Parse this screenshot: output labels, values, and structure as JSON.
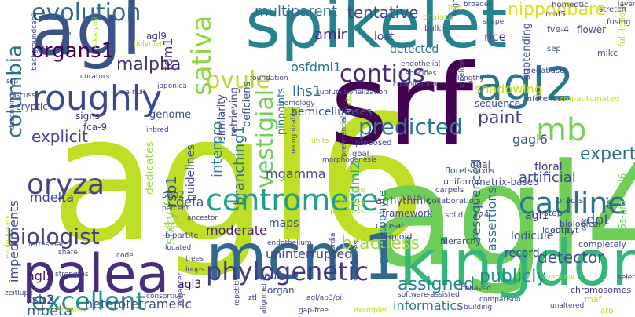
{
  "words": [
    {
      "text": "agl6",
      "color": "#bddf26"
    },
    {
      "text": "agl4",
      "color": "#6ece58"
    },
    {
      "text": "srf",
      "color": "#440154"
    },
    {
      "text": "spikelet",
      "color": "#26828e"
    },
    {
      "text": "agl",
      "color": "#3b528b"
    },
    {
      "text": "kingdoms",
      "color": "#35b779"
    },
    {
      "text": "mcm1",
      "color": "#31688e"
    },
    {
      "text": "palea",
      "color": "#472d7b"
    },
    {
      "text": "agl2",
      "color": "#2a788e"
    },
    {
      "text": "roughly",
      "color": "#3e4989"
    },
    {
      "text": "mb",
      "color": "#7ad151"
    },
    {
      "text": "cauline",
      "color": "#2c728e"
    },
    {
      "text": "centromere",
      "color": "#1f9e89"
    },
    {
      "text": "oryza",
      "color": "#414487"
    },
    {
      "text": "phylogenetic",
      "color": "#443983"
    },
    {
      "text": "excellent",
      "color": "#21918c"
    },
    {
      "text": "evolution",
      "color": "#31688e"
    },
    {
      "text": "ovule",
      "color": "#b5de2b"
    },
    {
      "text": "sativa",
      "color": "#90d743"
    },
    {
      "text": "contigs",
      "color": "#482878"
    },
    {
      "text": "predicted",
      "color": "#2a788e"
    },
    {
      "text": "vestigial",
      "color": "#6ece58"
    },
    {
      "text": "biologist",
      "color": "#433e85"
    },
    {
      "text": "columbia",
      "color": "#2e6e8e"
    },
    {
      "text": "organs1",
      "color": "#440154"
    },
    {
      "text": "malpha",
      "color": "#46327e"
    },
    {
      "text": "paint",
      "color": "#433e85"
    },
    {
      "text": "expert",
      "color": "#2c728e"
    },
    {
      "text": "bractless",
      "color": "#a0da39"
    },
    {
      "text": "tentative",
      "color": "#3f4788"
    },
    {
      "text": "nipponbare",
      "color": "#dde318"
    },
    {
      "text": "multiparent",
      "color": "#2d708e"
    },
    {
      "text": "amir",
      "color": "#482475"
    },
    {
      "text": "assigned",
      "color": "#26828e"
    },
    {
      "text": "publicly",
      "color": "#21918c"
    },
    {
      "text": "detector",
      "color": "#3b528b"
    },
    {
      "text": "uninterrupted",
      "color": "#414487"
    },
    {
      "text": "moderate",
      "color": "#481f70"
    },
    {
      "text": "artificial",
      "color": "#3e4a89"
    },
    {
      "text": "explicit",
      "color": "#3e4989"
    },
    {
      "text": "impediments",
      "color": "#3f4889"
    },
    {
      "text": "mbeta",
      "color": "#38588c"
    },
    {
      "text": "heterotetrameric",
      "color": "#3e4c8a"
    },
    {
      "text": "informatics",
      "color": "#2a768e"
    },
    {
      "text": "interpro",
      "color": "#24878e"
    },
    {
      "text": "branching1",
      "color": "#2e6f8e"
    },
    {
      "text": "sixty-four",
      "color": "#7fd34e"
    },
    {
      "text": "agl5",
      "color": "#48186a"
    },
    {
      "text": "rsb2",
      "color": "#453882"
    },
    {
      "text": "rsb1",
      "color": "#404688"
    },
    {
      "text": "mgamma",
      "color": "#3e4a89"
    },
    {
      "text": "osfdml2",
      "color": "#28ae80"
    },
    {
      "text": "gametophyte",
      "color": "#2d708e"
    },
    {
      "text": "resequenced",
      "color": "#355e8d"
    },
    {
      "text": "assertions",
      "color": "#2e6e8e"
    },
    {
      "text": "lodicule",
      "color": "#3a538b"
    },
    {
      "text": "record",
      "color": "#404588"
    },
    {
      "text": "dot",
      "color": "#3a538b"
    },
    {
      "text": "defa",
      "color": "#3b528b"
    },
    {
      "text": "mdelta",
      "color": "#3e4989"
    },
    {
      "text": "lhs1",
      "color": "#2f6c8e"
    },
    {
      "text": "osfdml1",
      "color": "#2c718e"
    },
    {
      "text": "gagl6",
      "color": "#39558c"
    },
    {
      "text": "floral",
      "color": "#453781"
    },
    {
      "text": "agl1",
      "color": "#453882"
    },
    {
      "text": "guidelines",
      "color": "#3e4c8a"
    },
    {
      "text": "maps",
      "color": "#3d4e8a"
    },
    {
      "text": "fdm1",
      "color": "#482576"
    },
    {
      "text": "similarity",
      "color": "#3e4a89"
    },
    {
      "text": "retrieving",
      "color": "#3f4889"
    },
    {
      "text": "deficiens",
      "color": "#3c4f8a"
    },
    {
      "text": "pinpoints",
      "color": "#2e6f8e"
    },
    {
      "text": "hemicelluloses",
      "color": "#38588c"
    },
    {
      "text": "lost",
      "color": "#3f4788"
    },
    {
      "text": "detected",
      "color": "#2b758e"
    },
    {
      "text": "shadowing",
      "color": "#cde11d"
    },
    {
      "text": "subtending",
      "color": "#3b528b"
    },
    {
      "text": "rice",
      "color": "#433e85"
    },
    {
      "text": "genome",
      "color": "#3e4989"
    },
    {
      "text": "cryptic",
      "color": "#3f4788"
    },
    {
      "text": "signs",
      "color": "#482878"
    },
    {
      "text": "agl3",
      "color": "#440154"
    },
    {
      "text": "auto",
      "color": "#3f4788"
    },
    {
      "text": "organ",
      "color": "#404688"
    },
    {
      "text": "agl9",
      "color": "#443a83"
    },
    {
      "text": "fca-9",
      "color": "#46337f"
    },
    {
      "text": "dedicates",
      "color": "#a5db36"
    },
    {
      "text": "sep2",
      "color": "#3b528b"
    },
    {
      "text": "fve-4",
      "color": "#3d4d8a"
    },
    {
      "text": "flower",
      "color": "#3e4a89"
    },
    {
      "text": "sep",
      "color": "#3b528b"
    },
    {
      "text": "mikc",
      "color": "#3d4d8a"
    },
    {
      "text": "35s-amiragl6",
      "color": "#73d056"
    },
    {
      "text": "c24",
      "color": "#3c4f8a"
    },
    {
      "text": "bracts",
      "color": "#3f4788"
    },
    {
      "text": "matrix-based",
      "color": "#3e4989"
    },
    {
      "text": "identity",
      "color": "#3b528b"
    },
    {
      "text": "completely",
      "color": "#404688"
    },
    {
      "text": "chromosomes",
      "color": "#453882"
    },
    {
      "text": "arrhythmic",
      "color": "#433e85"
    },
    {
      "text": "framework",
      "color": "#3f4788"
    },
    {
      "text": "output",
      "color": "#3f4889"
    },
    {
      "text": "vp16",
      "color": "#3e4c8a"
    },
    {
      "text": "causal",
      "color": "#3f4788"
    },
    {
      "text": "haploid",
      "color": "#3f4788"
    },
    {
      "text": "hierarchy",
      "color": "#3f4788"
    },
    {
      "text": "biological",
      "color": "#404688"
    },
    {
      "text": "step",
      "color": "#404688"
    },
    {
      "text": "dual",
      "color": "#3e4989"
    },
    {
      "text": "florets",
      "color": "#3b528b"
    },
    {
      "text": "uniform",
      "color": "#3f4788"
    },
    {
      "text": "axils",
      "color": "#3e4989"
    },
    {
      "text": "carpels",
      "color": "#3f4788"
    },
    {
      "text": "collaboration",
      "color": "#3e4989"
    },
    {
      "text": "solid",
      "color": "#3e4989"
    },
    {
      "text": "proposed",
      "color": "#3f4788"
    },
    {
      "text": "goal",
      "color": "#404688"
    },
    {
      "text": "sequence",
      "color": "#3e4989"
    },
    {
      "text": "inferences",
      "color": "#3f4788"
    },
    {
      "text": "full-length",
      "color": "#bddf26"
    },
    {
      "text": "semi-automated",
      "color": "#c2df23"
    },
    {
      "text": "megabases",
      "color": "#3e4989"
    },
    {
      "text": "stretch",
      "color": "#3f4788"
    },
    {
      "text": "fusing",
      "color": "#404688"
    },
    {
      "text": "homeotic",
      "color": "#3f4788"
    },
    {
      "text": "maf5",
      "color": "#3e4989"
    },
    {
      "text": "shape",
      "color": "#3f4788"
    },
    {
      "text": "segments",
      "color": "#3b528b"
    },
    {
      "text": "endothelial",
      "color": "#3f4788"
    },
    {
      "text": "specifies",
      "color": "#3e4989"
    },
    {
      "text": "combination",
      "color": "#3e4989"
    },
    {
      "text": "lengthy",
      "color": "#3f4788"
    },
    {
      "text": "fret",
      "color": "#c8e020"
    },
    {
      "text": "chalaza",
      "color": "#bddf26"
    },
    {
      "text": "bulk",
      "color": "#3f4788"
    },
    {
      "text": "broader",
      "color": "#3e4989"
    },
    {
      "text": "layer",
      "color": "#3f4788"
    },
    {
      "text": "subfunctionalization",
      "color": "#3f4788"
    },
    {
      "text": "majus",
      "color": "#b2dd2d"
    },
    {
      "text": "homology",
      "color": "#3e4989"
    },
    {
      "text": "foundation",
      "color": "#3f4788"
    },
    {
      "text": "rna-null",
      "color": "#3f4788"
    },
    {
      "text": "japonica",
      "color": "#3f4788"
    },
    {
      "text": "curators",
      "color": "#3f4788"
    },
    {
      "text": "polymer",
      "color": "#b8de29"
    },
    {
      "text": "eukaryotic",
      "color": "#a8db34"
    },
    {
      "text": "arms",
      "color": "#3f4788"
    },
    {
      "text": "backgroundcab2",
      "color": "#3f4788"
    },
    {
      "text": "describing",
      "color": "#3f4788"
    },
    {
      "text": "discuss",
      "color": "#3f4788"
    },
    {
      "text": "ssp",
      "color": "#3f4788"
    },
    {
      "text": "percent",
      "color": "#3f4788"
    },
    {
      "text": "ancestor",
      "color": "#3f4788"
    },
    {
      "text": "recognizable",
      "color": "#3f4788"
    },
    {
      "text": "female",
      "color": "#b5de2b"
    },
    {
      "text": "clones",
      "color": "#addc30"
    },
    {
      "text": "endothelium",
      "color": "#3f4788"
    },
    {
      "text": "programs",
      "color": "#b0dd2f"
    },
    {
      "text": "inbred",
      "color": "#3f4788"
    },
    {
      "text": "stigmas",
      "color": "#b0dd2f"
    },
    {
      "text": "bipartite",
      "color": "#3e4989"
    },
    {
      "text": "terrestrial",
      "color": "#3f4788"
    },
    {
      "text": "share",
      "color": "#3f4788"
    },
    {
      "text": "evolutionary",
      "color": "#b8de29"
    },
    {
      "text": "located",
      "color": "#3f4788"
    },
    {
      "text": "strengths",
      "color": "#3f4788"
    },
    {
      "text": "code",
      "color": "#3f4788"
    },
    {
      "text": "trees",
      "color": "#3e4989"
    },
    {
      "text": "loops",
      "color": "#3f4788"
    },
    {
      "text": "zeitlupe",
      "color": "#3f4788"
    },
    {
      "text": "consortium",
      "color": "#3f4788"
    },
    {
      "text": "enhancer",
      "color": "#3f4788"
    },
    {
      "text": "emphasis",
      "color": "#b8de29"
    },
    {
      "text": "repetitive",
      "color": "#3f4788"
    },
    {
      "text": "ztl",
      "color": "#3f4788"
    },
    {
      "text": "alignments",
      "color": "#3f4788"
    },
    {
      "text": "agl/ap3/pi",
      "color": "#3f4788"
    },
    {
      "text": "gap-free",
      "color": "#3f4788"
    },
    {
      "text": "examples",
      "color": "#b8de29"
    },
    {
      "text": "primordia",
      "color": "#3f4788"
    },
    {
      "text": "subfamilies",
      "color": "#3f4788"
    },
    {
      "text": "software-assisted",
      "color": "#3f4788"
    },
    {
      "text": "building",
      "color": "#3f4788"
    },
    {
      "text": "comparison",
      "color": "#3f4788"
    },
    {
      "text": "behaved",
      "color": "#3f4788"
    },
    {
      "text": "unaltered",
      "color": "#3f4788"
    },
    {
      "text": "arb",
      "color": "#b8de29"
    },
    {
      "text": "maf",
      "color": "#b8de29"
    },
    {
      "text": "selection",
      "color": "#3f4788"
    },
    {
      "text": "def",
      "color": "#3f4788"
    },
    {
      "text": "cdk",
      "color": "#3f4788"
    },
    {
      "text": "overview",
      "color": "#b8de29"
    },
    {
      "text": "units",
      "color": "#b8de29"
    },
    {
      "text": "morphogenesis",
      "color": "#3f4788"
    },
    {
      "text": "preferentially",
      "color": "#3f4788"
    },
    {
      "text": "pipeline",
      "color": "#3f4788"
    },
    {
      "text": "antirrhinum",
      "color": "#3f4788"
    },
    {
      "text": "arranged",
      "color": "#b8de29"
    }
  ]
}
